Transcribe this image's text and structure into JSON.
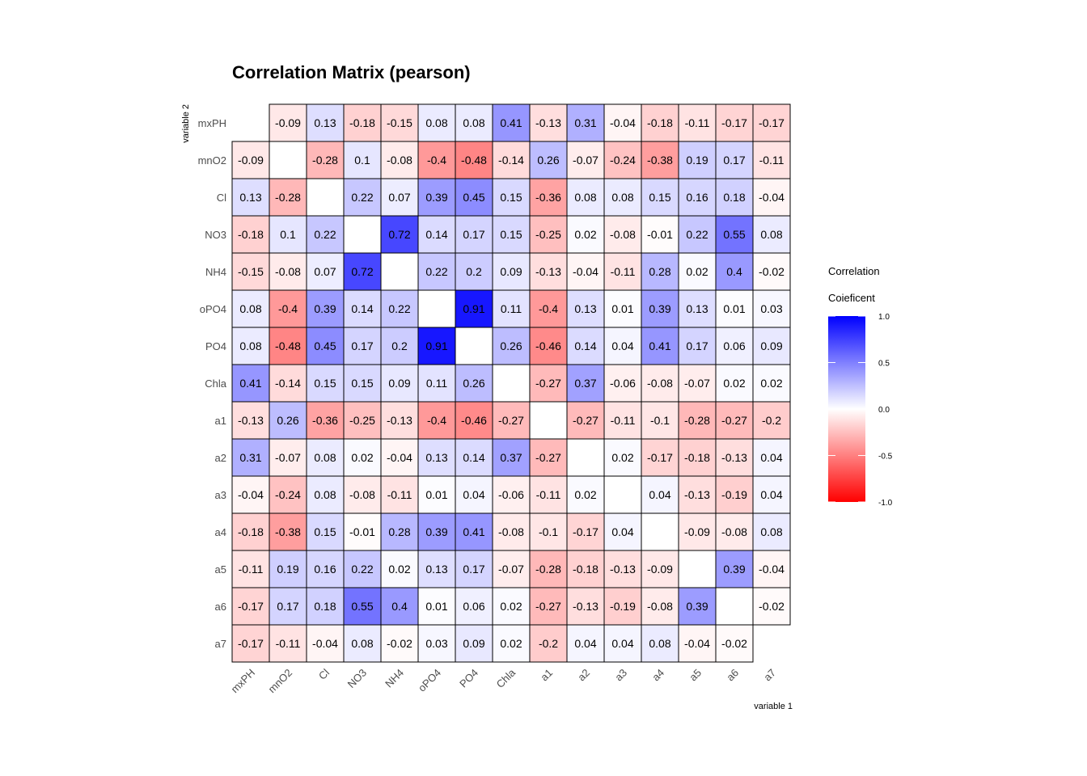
{
  "chart_data": {
    "type": "heatmap",
    "title": "Correlation Matrix (pearson)",
    "xlabel": "variable 1",
    "ylabel": "variable 2",
    "variables": [
      "mxPH",
      "mnO2",
      "Cl",
      "NO3",
      "NH4",
      "oPO4",
      "PO4",
      "Chla",
      "a1",
      "a2",
      "a3",
      "a4",
      "a5",
      "a6",
      "a7"
    ],
    "matrix": [
      [
        null,
        -0.09,
        0.13,
        -0.18,
        -0.15,
        0.08,
        0.08,
        0.41,
        -0.13,
        0.31,
        -0.04,
        -0.18,
        -0.11,
        -0.17,
        -0.17
      ],
      [
        -0.09,
        null,
        -0.28,
        0.1,
        -0.08,
        -0.4,
        -0.48,
        -0.14,
        0.26,
        -0.07,
        -0.24,
        -0.38,
        0.19,
        0.17,
        -0.11
      ],
      [
        0.13,
        -0.28,
        null,
        0.22,
        0.07,
        0.39,
        0.45,
        0.15,
        -0.36,
        0.08,
        0.08,
        0.15,
        0.16,
        0.18,
        -0.04
      ],
      [
        -0.18,
        0.1,
        0.22,
        null,
        0.72,
        0.14,
        0.17,
        0.15,
        -0.25,
        0.02,
        -0.08,
        -0.01,
        0.22,
        0.55,
        0.08
      ],
      [
        -0.15,
        -0.08,
        0.07,
        0.72,
        null,
        0.22,
        0.2,
        0.09,
        -0.13,
        -0.04,
        -0.11,
        0.28,
        0.02,
        0.4,
        -0.02
      ],
      [
        0.08,
        -0.4,
        0.39,
        0.14,
        0.22,
        null,
        0.91,
        0.11,
        -0.4,
        0.13,
        0.01,
        0.39,
        0.13,
        0.01,
        0.03
      ],
      [
        0.08,
        -0.48,
        0.45,
        0.17,
        0.2,
        0.91,
        null,
        0.26,
        -0.46,
        0.14,
        0.04,
        0.41,
        0.17,
        0.06,
        0.09
      ],
      [
        0.41,
        -0.14,
        0.15,
        0.15,
        0.09,
        0.11,
        0.26,
        null,
        -0.27,
        0.37,
        -0.06,
        -0.08,
        -0.07,
        0.02,
        0.02
      ],
      [
        -0.13,
        0.26,
        -0.36,
        -0.25,
        -0.13,
        -0.4,
        -0.46,
        -0.27,
        null,
        -0.27,
        -0.11,
        -0.1,
        -0.28,
        -0.27,
        -0.2
      ],
      [
        0.31,
        -0.07,
        0.08,
        0.02,
        -0.04,
        0.13,
        0.14,
        0.37,
        -0.27,
        null,
        0.02,
        -0.17,
        -0.18,
        -0.13,
        0.04
      ],
      [
        -0.04,
        -0.24,
        0.08,
        -0.08,
        -0.11,
        0.01,
        0.04,
        -0.06,
        -0.11,
        0.02,
        null,
        0.04,
        -0.13,
        -0.19,
        0.04
      ],
      [
        -0.18,
        -0.38,
        0.15,
        -0.01,
        0.28,
        0.39,
        0.41,
        -0.08,
        -0.1,
        -0.17,
        0.04,
        null,
        -0.09,
        -0.08,
        0.08
      ],
      [
        -0.11,
        0.19,
        0.16,
        0.22,
        0.02,
        0.13,
        0.17,
        -0.07,
        -0.28,
        -0.18,
        -0.13,
        -0.09,
        null,
        0.39,
        -0.04
      ],
      [
        -0.17,
        0.17,
        0.18,
        0.55,
        0.4,
        0.01,
        0.06,
        0.02,
        -0.27,
        -0.13,
        -0.19,
        -0.08,
        0.39,
        null,
        -0.02
      ],
      [
        -0.17,
        -0.11,
        -0.04,
        0.08,
        -0.02,
        0.03,
        0.09,
        0.02,
        -0.2,
        0.04,
        0.04,
        0.08,
        -0.04,
        -0.02,
        null
      ]
    ],
    "color_scale": {
      "low": "#ff0000",
      "mid": "#ffffff",
      "high": "#0000ff",
      "limits": [
        -1,
        1
      ]
    },
    "legend": {
      "title_line1": "Correlation",
      "title_line2": "Coieficent",
      "ticks": [
        1.0,
        0.5,
        0.0,
        -0.5,
        -1.0
      ],
      "tick_labels": [
        "1.0",
        "0.5",
        "0.0",
        "-0.5",
        "-1.0"
      ],
      "placement": "right"
    }
  }
}
